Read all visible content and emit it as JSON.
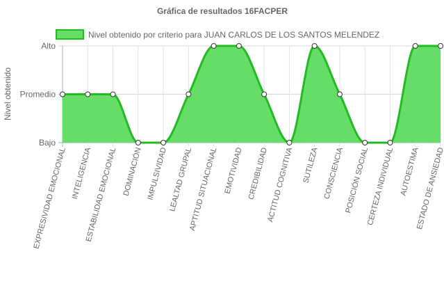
{
  "chart_data": {
    "type": "area",
    "title": "Gráfica de resultados 16FACPER",
    "ylabel": "Nivel obtenido",
    "xlabel": "",
    "y_levels": [
      "Bajo",
      "Promedio",
      "Alto"
    ],
    "ylim": [
      0,
      2
    ],
    "grid": true,
    "legend_position": "top",
    "categories": [
      "EXPRESIVIDAD EMOCIONAL",
      "INTELIGENCIA",
      "ESTABILIDAD EMOCIONAL",
      "DOMINACIÓN",
      "IMPULSIVIDAD",
      "LEALTAD GRUPAL",
      "APTITUD SITUACIONAL",
      "EMOTIVIDAD",
      "CREDIBILIDAD",
      "ACTITUD COGNITIVA",
      "SUTILEZA",
      "CONSCIENCIA",
      "POSICIÓN SOCIAL",
      "CERTEZA INDIVIDUAL",
      "AUTOESTIMA",
      "ESTADO DE ANSIEDAD"
    ],
    "series": [
      {
        "name": "Nivel obtenido por criterio para JUAN CARLOS DE LOS SANTOS MELENDEZ",
        "values": [
          1,
          1,
          1,
          0,
          0,
          1,
          2,
          2,
          1,
          0,
          2,
          1,
          0,
          0,
          2,
          2
        ],
        "fill_color": "#66dd66",
        "line_color": "#22bb22"
      }
    ]
  }
}
